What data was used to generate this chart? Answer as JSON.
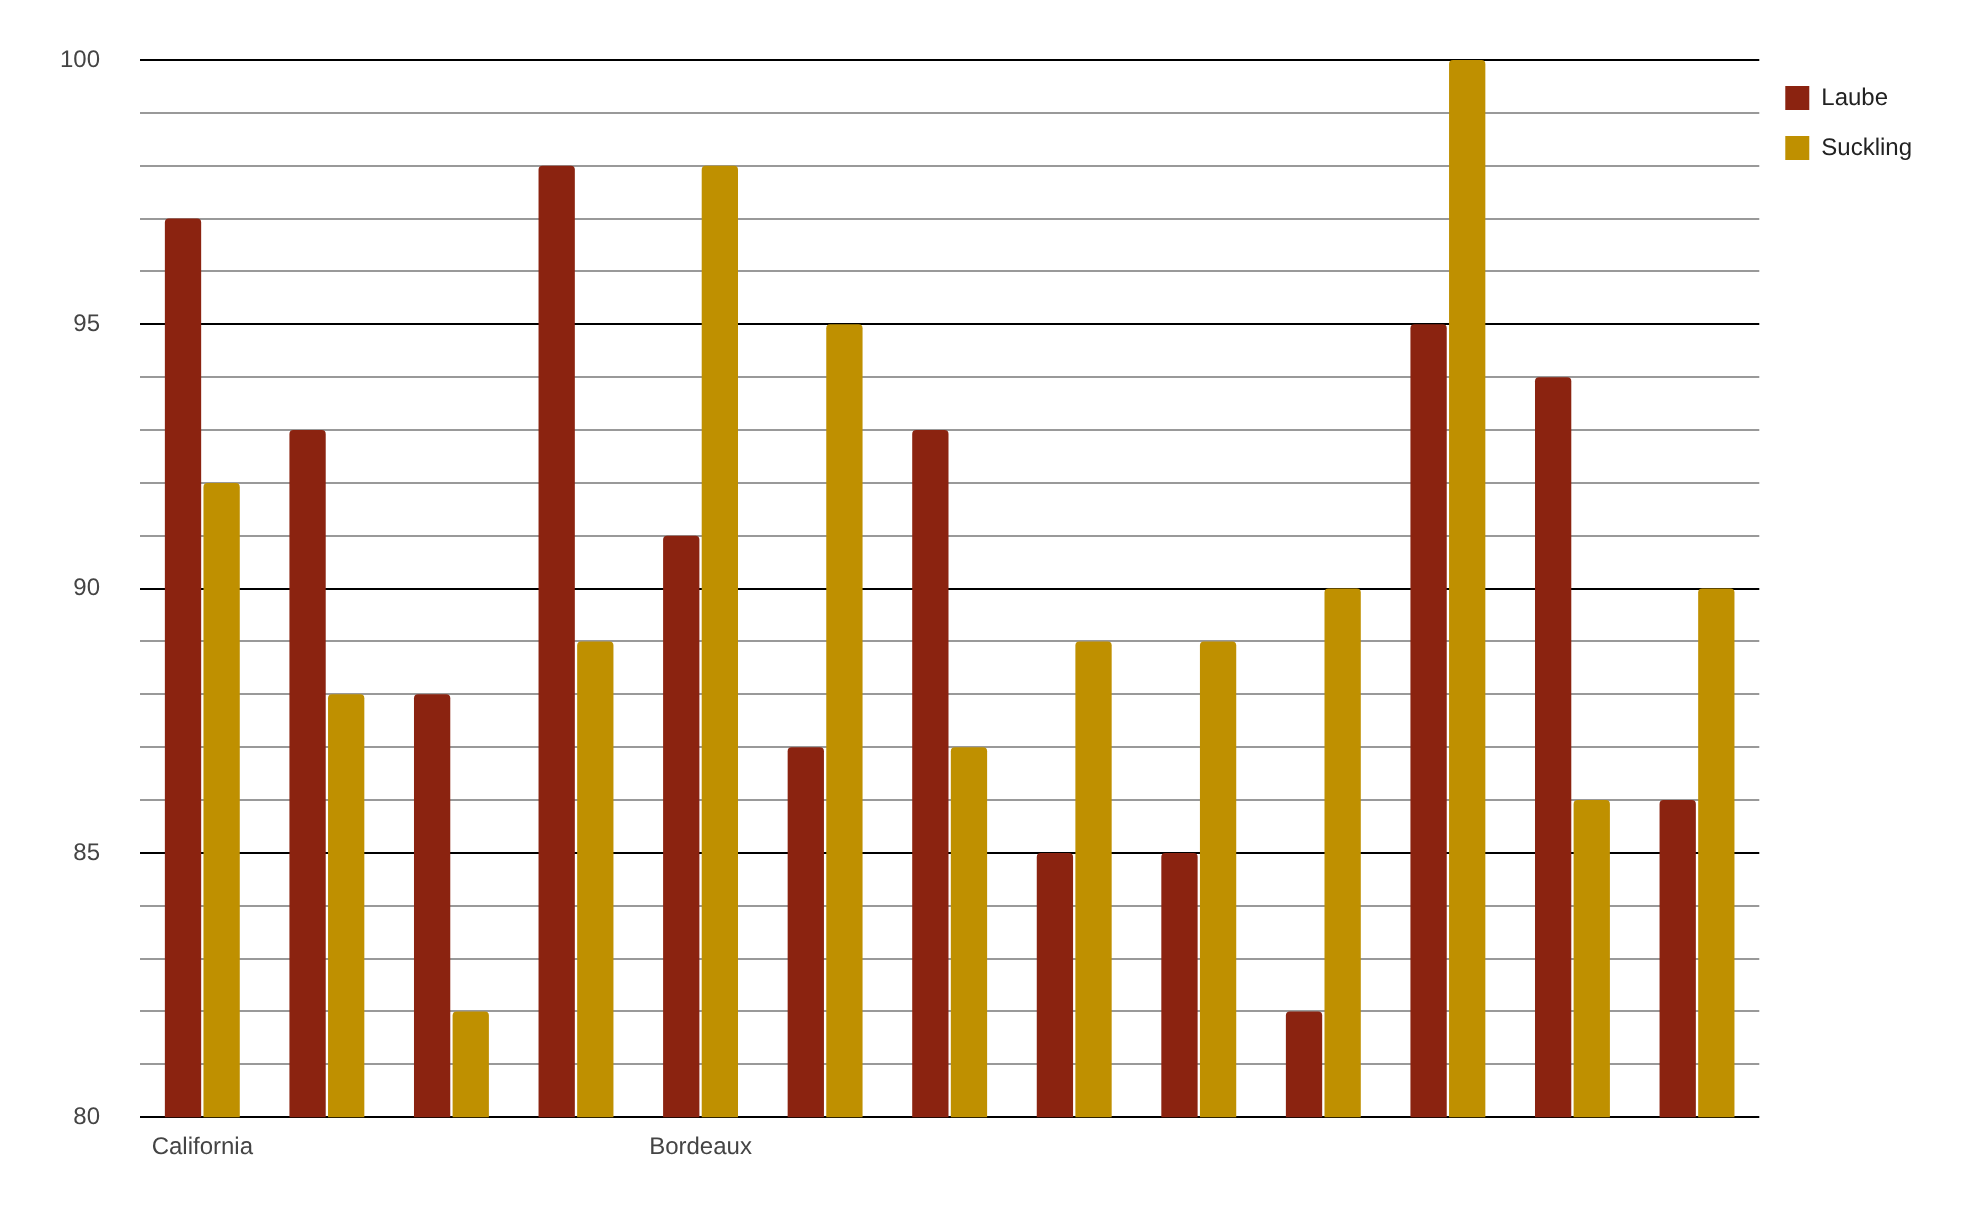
{
  "chart_data": {
    "type": "bar",
    "categories": [
      "California",
      null,
      null,
      null,
      "Bordeaux",
      null,
      null,
      null,
      null,
      null,
      null,
      null,
      null
    ],
    "series": [
      {
        "name": "Laube",
        "color": "#8b2310",
        "values": [
          97,
          93,
          88,
          98,
          91,
          87,
          93,
          85,
          85,
          82,
          95,
          94,
          86
        ]
      },
      {
        "name": "Suckling",
        "color": "#bf9000",
        "values": [
          92,
          88,
          82,
          89,
          98,
          95,
          87,
          89,
          89,
          90,
          100,
          86,
          90
        ]
      }
    ],
    "ylim": [
      80,
      100
    ],
    "yticks": [
      80,
      {
        "value": 81,
        "label": null
      },
      {
        "value": 82,
        "label": null
      },
      {
        "value": 83,
        "label": null
      },
      {
        "value": 84,
        "label": null
      },
      85,
      {
        "value": 86,
        "label": null
      },
      {
        "value": 87,
        "label": null
      },
      {
        "value": 88,
        "label": null
      },
      {
        "value": 89,
        "label": null
      },
      90,
      {
        "value": 91,
        "label": null
      },
      {
        "value": 92,
        "label": null
      },
      {
        "value": 93,
        "label": null
      },
      {
        "value": 94,
        "label": null
      },
      95,
      {
        "value": 96,
        "label": null
      },
      {
        "value": 97,
        "label": null
      },
      {
        "value": 98,
        "label": null
      },
      {
        "value": 99,
        "label": null
      },
      100
    ],
    "grid": "y",
    "legend": "top right"
  }
}
